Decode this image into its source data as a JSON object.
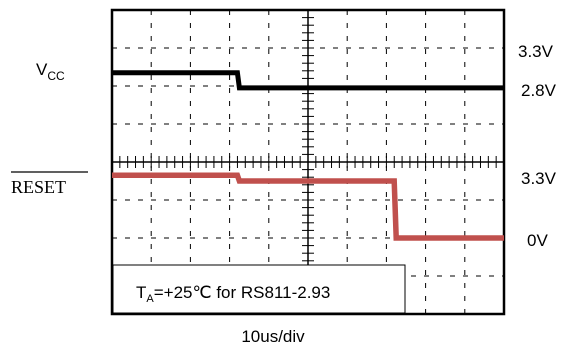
{
  "chart_data": {
    "type": "line",
    "title": "",
    "xlabel": "10us/div",
    "divisions": {
      "x": 10,
      "y": 8
    },
    "grid": true,
    "x_unit": "us",
    "x_range": [
      0,
      100
    ],
    "series": [
      {
        "name": "VCC",
        "color": "#000000",
        "voltage_levels": {
          "high_label": "3.3V",
          "low_label": "2.8V"
        },
        "points": [
          [
            0,
            3.3
          ],
          [
            32,
            3.3
          ],
          [
            32.5,
            2.8
          ],
          [
            100,
            2.8
          ]
        ]
      },
      {
        "name": "RESET",
        "color": "#c0504d",
        "voltage_levels": {
          "high_label": "3.3V",
          "low_label": "0V"
        },
        "points": [
          [
            0,
            3.3
          ],
          [
            32,
            3.3
          ],
          [
            32.5,
            3.0
          ],
          [
            72,
            3.0
          ],
          [
            72.5,
            0
          ],
          [
            100,
            0
          ]
        ]
      }
    ],
    "annotation": {
      "text_main": "T",
      "text_sub": "A",
      "text_rest": "=+25℃ for RS811-2.93"
    },
    "channel_labels": {
      "vcc_main": "V",
      "vcc_sub": "CC",
      "reset": "RESET"
    },
    "right_labels": [
      "3.3V",
      "2.8V",
      "3.3V",
      "0V"
    ]
  }
}
